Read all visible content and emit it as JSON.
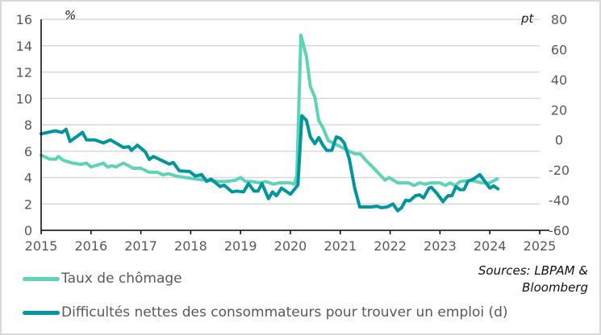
{
  "chart_data": {
    "type": "line",
    "x_ticks": [
      "2015",
      "2016",
      "2017",
      "2018",
      "2019",
      "2020",
      "2021",
      "2022",
      "2023",
      "2024",
      "2025"
    ],
    "xlim": [
      2015,
      2025
    ],
    "y_left": {
      "unit": "%",
      "lim": [
        0,
        16
      ],
      "ticks": [
        "0",
        "2",
        "4",
        "6",
        "8",
        "10",
        "12",
        "14",
        "16"
      ]
    },
    "y_right": {
      "unit": "pt",
      "lim": [
        -60,
        80
      ],
      "ticks": [
        "-60",
        "-40",
        "-20",
        "0",
        "20",
        "40",
        "60",
        "80"
      ]
    },
    "grid": true,
    "legend_placement": "bottom",
    "series": [
      {
        "name": "Taux de chômage",
        "axis": "left",
        "color": "#5dd4b8",
        "points": [
          [
            2015.0,
            5.7
          ],
          [
            2015.17,
            5.4
          ],
          [
            2015.3,
            5.4
          ],
          [
            2015.34,
            5.6
          ],
          [
            2015.45,
            5.3
          ],
          [
            2015.63,
            5.1
          ],
          [
            2015.8,
            5.0
          ],
          [
            2015.91,
            5.1
          ],
          [
            2016.0,
            4.8
          ],
          [
            2016.25,
            5.1
          ],
          [
            2016.33,
            4.8
          ],
          [
            2016.42,
            4.9
          ],
          [
            2016.5,
            4.8
          ],
          [
            2016.65,
            5.1
          ],
          [
            2016.85,
            4.7
          ],
          [
            2017.0,
            4.7
          ],
          [
            2017.17,
            4.4
          ],
          [
            2017.33,
            4.4
          ],
          [
            2017.45,
            4.2
          ],
          [
            2017.55,
            4.3
          ],
          [
            2017.72,
            4.1
          ],
          [
            2017.9,
            4.0
          ],
          [
            2018.08,
            3.9
          ],
          [
            2018.3,
            3.8
          ],
          [
            2018.55,
            3.7
          ],
          [
            2018.72,
            3.7
          ],
          [
            2018.9,
            3.8
          ],
          [
            2019.0,
            4.0
          ],
          [
            2019.1,
            3.7
          ],
          [
            2019.22,
            3.7
          ],
          [
            2019.38,
            3.6
          ],
          [
            2019.5,
            3.7
          ],
          [
            2019.66,
            3.5
          ],
          [
            2019.78,
            3.6
          ],
          [
            2020.0,
            3.6
          ],
          [
            2020.08,
            3.5
          ],
          [
            2020.13,
            4.2
          ],
          [
            2020.21,
            14.8
          ],
          [
            2020.32,
            13.2
          ],
          [
            2020.4,
            10.9
          ],
          [
            2020.49,
            10.1
          ],
          [
            2020.57,
            8.3
          ],
          [
            2020.65,
            7.8
          ],
          [
            2020.76,
            6.8
          ],
          [
            2021.08,
            6.2
          ],
          [
            2021.18,
            6.0
          ],
          [
            2021.29,
            5.8
          ],
          [
            2021.4,
            5.8
          ],
          [
            2021.49,
            5.4
          ],
          [
            2021.7,
            4.6
          ],
          [
            2021.9,
            3.8
          ],
          [
            2021.98,
            4.0
          ],
          [
            2022.15,
            3.6
          ],
          [
            2022.37,
            3.6
          ],
          [
            2022.48,
            3.4
          ],
          [
            2022.59,
            3.6
          ],
          [
            2022.7,
            3.5
          ],
          [
            2022.81,
            3.6
          ],
          [
            2023.0,
            3.6
          ],
          [
            2023.11,
            3.4
          ],
          [
            2023.2,
            3.6
          ],
          [
            2023.3,
            3.4
          ],
          [
            2023.41,
            3.7
          ],
          [
            2023.62,
            3.8
          ],
          [
            2023.83,
            3.6
          ],
          [
            2023.99,
            3.6
          ],
          [
            2024.15,
            3.9
          ]
        ]
      },
      {
        "name": "Difficultés nettes des consommateurs pour trouver un emploi (d)",
        "axis": "right",
        "color": "#00969c",
        "points": [
          [
            2015.0,
            4
          ],
          [
            2015.28,
            6
          ],
          [
            2015.42,
            5
          ],
          [
            2015.5,
            7
          ],
          [
            2015.58,
            -1
          ],
          [
            2015.83,
            5
          ],
          [
            2015.91,
            0
          ],
          [
            2016.08,
            0
          ],
          [
            2016.25,
            -2
          ],
          [
            2016.39,
            0
          ],
          [
            2016.65,
            -5
          ],
          [
            2016.76,
            -4.5
          ],
          [
            2016.81,
            -7
          ],
          [
            2016.93,
            -3.5
          ],
          [
            2017.09,
            -8
          ],
          [
            2017.17,
            -13
          ],
          [
            2017.25,
            -11
          ],
          [
            2017.57,
            -16
          ],
          [
            2017.65,
            -15
          ],
          [
            2017.77,
            -20.5
          ],
          [
            2017.98,
            -21
          ],
          [
            2018.09,
            -24
          ],
          [
            2018.22,
            -23
          ],
          [
            2018.32,
            -27.5
          ],
          [
            2018.41,
            -26
          ],
          [
            2018.59,
            -31
          ],
          [
            2018.67,
            -30
          ],
          [
            2018.83,
            -34.5
          ],
          [
            2018.92,
            -34
          ],
          [
            2019.06,
            -34.5
          ],
          [
            2019.16,
            -29
          ],
          [
            2019.27,
            -34
          ],
          [
            2019.35,
            -34
          ],
          [
            2019.43,
            -29
          ],
          [
            2019.56,
            -39
          ],
          [
            2019.64,
            -34.5
          ],
          [
            2019.72,
            -37
          ],
          [
            2019.82,
            -32
          ],
          [
            2020.0,
            -36
          ],
          [
            2020.15,
            -30
          ],
          [
            2020.23,
            16
          ],
          [
            2020.32,
            13
          ],
          [
            2020.4,
            2
          ],
          [
            2020.49,
            -2.5
          ],
          [
            2020.57,
            1.5
          ],
          [
            2020.65,
            -3.5
          ],
          [
            2020.73,
            -7
          ],
          [
            2020.83,
            -7
          ],
          [
            2020.92,
            2
          ],
          [
            2021.0,
            1
          ],
          [
            2021.08,
            -2
          ],
          [
            2021.18,
            -12.5
          ],
          [
            2021.29,
            -32
          ],
          [
            2021.39,
            -44.5
          ],
          [
            2021.62,
            -44.5
          ],
          [
            2021.73,
            -44
          ],
          [
            2021.83,
            -45
          ],
          [
            2021.94,
            -44.5
          ],
          [
            2022.06,
            -42.5
          ],
          [
            2022.15,
            -47
          ],
          [
            2022.23,
            -45
          ],
          [
            2022.31,
            -40
          ],
          [
            2022.39,
            -40.5
          ],
          [
            2022.51,
            -37
          ],
          [
            2022.59,
            -36.5
          ],
          [
            2022.67,
            -38.5
          ],
          [
            2022.78,
            -32
          ],
          [
            2022.83,
            -31.5
          ],
          [
            2022.95,
            -36
          ],
          [
            2023.06,
            -41
          ],
          [
            2023.16,
            -37
          ],
          [
            2023.24,
            -37
          ],
          [
            2023.32,
            -31
          ],
          [
            2023.4,
            -33
          ],
          [
            2023.48,
            -33
          ],
          [
            2023.56,
            -27.5
          ],
          [
            2023.67,
            -26
          ],
          [
            2023.8,
            -23
          ],
          [
            2024.0,
            -32
          ],
          [
            2024.08,
            -30.5
          ],
          [
            2024.16,
            -32.5
          ]
        ]
      }
    ]
  },
  "legend": {
    "items": [
      "Taux de chômage",
      "Difficultés nettes des consommateurs pour trouver un emploi (d)"
    ]
  },
  "sources": {
    "line1": "Sources: LBPAM &",
    "line2": "Bloomberg"
  }
}
